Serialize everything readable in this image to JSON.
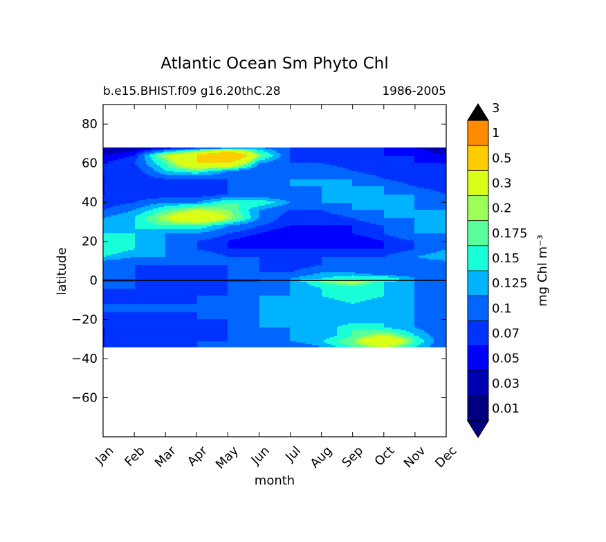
{
  "chart_data": {
    "type": "heatmap",
    "plot_kind": "filled-contour",
    "title": "Atlantic Ocean Sm Phyto Chl",
    "subtitle_left": "b.e15.BHIST.f09 g16.20thC.28",
    "subtitle_right": "1986-2005",
    "xlabel": "month",
    "ylabel": "latitude",
    "x_ticks": [
      "Jan",
      "Feb",
      "Mar",
      "Apr",
      "May",
      "Jun",
      "Jul",
      "Aug",
      "Sep",
      "Oct",
      "Nov",
      "Dec"
    ],
    "xlim": [
      0,
      11
    ],
    "ylim": [
      -80,
      90
    ],
    "y_ticks": [
      80,
      60,
      40,
      20,
      0,
      -20,
      -40,
      -60
    ],
    "y_tick_labels": [
      "80",
      "60",
      "40",
      "20",
      "0",
      "−20",
      "−40",
      "−60"
    ],
    "data_lat_range": [
      -34,
      68
    ],
    "colorbar": {
      "label": "mg Chl m⁻³",
      "levels": [
        "0.01",
        "0.03",
        "0.05",
        "0.07",
        "0.1",
        "0.125",
        "0.15",
        "0.175",
        "0.2",
        "0.3",
        "0.5",
        "1",
        "3"
      ],
      "level_values": [
        0.01,
        0.03,
        0.05,
        0.07,
        0.1,
        0.125,
        0.15,
        0.175,
        0.2,
        0.3,
        0.5,
        1,
        3
      ],
      "colors": [
        "#000080",
        "#0000b3",
        "#0000ff",
        "#0033ff",
        "#0066ff",
        "#00b3ff",
        "#19ffd9",
        "#59ff9c",
        "#9cff59",
        "#d9ff19",
        "#ffcc00",
        "#ff8c00",
        "#ff4d00",
        "#ff0000",
        "#800000"
      ],
      "extend": "both"
    },
    "sample_lat": [
      68,
      64,
      60,
      56,
      52,
      48,
      44,
      40,
      36,
      32,
      28,
      24,
      20,
      16,
      12,
      8,
      4,
      1,
      0,
      -1,
      -4,
      -8,
      -12,
      -16,
      -20,
      -24,
      -28,
      -31,
      -34
    ],
    "values": [
      [
        0.01,
        0.01,
        0.03,
        0.05,
        0.07,
        0.1,
        0.07,
        0.05,
        0.05,
        0.05,
        0.03,
        0.01
      ],
      [
        0.03,
        0.05,
        0.2,
        0.3,
        0.5,
        0.175,
        0.07,
        0.05,
        0.05,
        0.05,
        0.05,
        0.03
      ],
      [
        0.05,
        0.07,
        0.15,
        0.3,
        0.3,
        0.1,
        0.07,
        0.07,
        0.05,
        0.05,
        0.05,
        0.05
      ],
      [
        0.05,
        0.05,
        0.125,
        0.15,
        0.1,
        0.07,
        0.07,
        0.1,
        0.07,
        0.05,
        0.05,
        0.05
      ],
      [
        0.05,
        0.05,
        0.07,
        0.07,
        0.07,
        0.07,
        0.1,
        0.1,
        0.1,
        0.07,
        0.05,
        0.05
      ],
      [
        0.05,
        0.05,
        0.05,
        0.05,
        0.07,
        0.07,
        0.1,
        0.1,
        0.1,
        0.1,
        0.07,
        0.05
      ],
      [
        0.05,
        0.05,
        0.05,
        0.05,
        0.07,
        0.07,
        0.07,
        0.1,
        0.1,
        0.1,
        0.1,
        0.07
      ],
      [
        0.05,
        0.07,
        0.1,
        0.1,
        0.15,
        0.15,
        0.1,
        0.1,
        0.1,
        0.1,
        0.1,
        0.07
      ],
      [
        0.07,
        0.1,
        0.15,
        0.2,
        0.175,
        0.1,
        0.07,
        0.07,
        0.1,
        0.1,
        0.1,
        0.1
      ],
      [
        0.1,
        0.125,
        0.2,
        0.3,
        0.2,
        0.1,
        0.05,
        0.05,
        0.07,
        0.1,
        0.1,
        0.1
      ],
      [
        0.1,
        0.125,
        0.15,
        0.15,
        0.1,
        0.07,
        0.05,
        0.05,
        0.05,
        0.07,
        0.1,
        0.1
      ],
      [
        0.125,
        0.125,
        0.1,
        0.1,
        0.07,
        0.05,
        0.03,
        0.03,
        0.05,
        0.07,
        0.1,
        0.1
      ],
      [
        0.125,
        0.125,
        0.1,
        0.07,
        0.05,
        0.03,
        0.03,
        0.03,
        0.03,
        0.05,
        0.07,
        0.1
      ],
      [
        0.15,
        0.125,
        0.1,
        0.07,
        0.05,
        0.05,
        0.05,
        0.05,
        0.05,
        0.05,
        0.07,
        0.1
      ],
      [
        0.125,
        0.1,
        0.1,
        0.1,
        0.07,
        0.07,
        0.07,
        0.07,
        0.07,
        0.07,
        0.1,
        0.125
      ],
      [
        0.07,
        0.07,
        0.07,
        0.07,
        0.07,
        0.07,
        0.05,
        0.07,
        0.07,
        0.07,
        0.07,
        0.07
      ],
      [
        0.07,
        0.07,
        0.05,
        0.05,
        0.07,
        0.07,
        0.07,
        0.1,
        0.1,
        0.07,
        0.07,
        0.07
      ],
      [
        0.07,
        0.07,
        0.07,
        0.07,
        0.07,
        0.07,
        0.1,
        0.125,
        0.15,
        0.15,
        0.1,
        0.07
      ],
      [
        0.05,
        0.05,
        0.05,
        0.05,
        0.05,
        0.07,
        0.1,
        0.2,
        0.2,
        0.15,
        0.1,
        0.07
      ],
      [
        0.07,
        0.07,
        0.07,
        0.07,
        0.07,
        0.07,
        0.1,
        0.15,
        0.2,
        0.125,
        0.1,
        0.07
      ],
      [
        0.07,
        0.07,
        0.05,
        0.05,
        0.07,
        0.07,
        0.1,
        0.125,
        0.125,
        0.125,
        0.1,
        0.07
      ],
      [
        0.05,
        0.05,
        0.05,
        0.07,
        0.07,
        0.1,
        0.1,
        0.125,
        0.15,
        0.125,
        0.1,
        0.07
      ],
      [
        0.07,
        0.07,
        0.07,
        0.07,
        0.1,
        0.1,
        0.1,
        0.1,
        0.125,
        0.1,
        0.1,
        0.07
      ],
      [
        0.07,
        0.07,
        0.07,
        0.07,
        0.07,
        0.1,
        0.1,
        0.1,
        0.1,
        0.1,
        0.1,
        0.07
      ],
      [
        0.07,
        0.05,
        0.05,
        0.07,
        0.07,
        0.1,
        0.1,
        0.1,
        0.1,
        0.125,
        0.1,
        0.07
      ],
      [
        0.05,
        0.05,
        0.05,
        0.05,
        0.07,
        0.1,
        0.1,
        0.1,
        0.15,
        0.125,
        0.1,
        0.07
      ],
      [
        0.05,
        0.05,
        0.05,
        0.05,
        0.07,
        0.07,
        0.1,
        0.1,
        0.15,
        0.2,
        0.125,
        0.07
      ],
      [
        0.05,
        0.05,
        0.05,
        0.07,
        0.07,
        0.07,
        0.1,
        0.125,
        0.175,
        0.3,
        0.15,
        0.07
      ],
      [
        0.05,
        0.05,
        0.07,
        0.07,
        0.07,
        0.07,
        0.07,
        0.1,
        0.15,
        0.2,
        0.125,
        0.07
      ]
    ]
  }
}
